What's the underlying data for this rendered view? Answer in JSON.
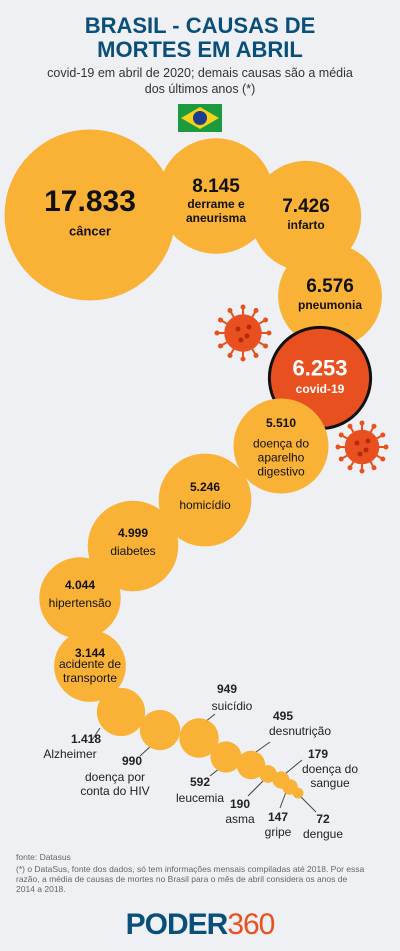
{
  "header": {
    "title": "BRASIL - CAUSAS DE MORTES EM ABRIL",
    "subtitle": "covid-19 em abril de 2020; demais causas são a média dos últimos anos (*)"
  },
  "chart_data": {
    "type": "bubble",
    "categories": [
      "câncer",
      "derrame e aneurisma",
      "infarto",
      "pneumonia",
      "covid-19",
      "doença do aparelho digestivo",
      "homicídio",
      "diabetes",
      "hipertensão",
      "acidente de transporte",
      "Alzheimer",
      "doença por conta do HIV",
      "suicídio",
      "leucemia",
      "desnutrição",
      "asma",
      "doença do sangue",
      "gripe",
      "dengue"
    ],
    "values": [
      17833,
      8145,
      7426,
      6576,
      6253,
      5510,
      5246,
      4999,
      4044,
      3144,
      1418,
      990,
      949,
      592,
      495,
      190,
      179,
      147,
      72
    ],
    "value_labels": [
      "17.833",
      "8.145",
      "7.426",
      "6.576",
      "6.253",
      "5.510",
      "5.246",
      "4.999",
      "4.044",
      "3.144",
      "1.418",
      "990",
      "949",
      "592",
      "495",
      "190",
      "179",
      "147",
      "72"
    ],
    "color": "#f9b236",
    "highlight_color": "#e8501f",
    "highlight": "covid-19"
  },
  "footer": {
    "source": "fonte: Datasus",
    "note": "(*) o DataSus, fonte dos dados, só tem informações mensais compiladas até 2018. Por essa razão, a média de causas de mortes no Brasil para o mês de abril considera os anos de 2014 a 2018.",
    "logo_left": "PODER",
    "logo_right": "360"
  }
}
